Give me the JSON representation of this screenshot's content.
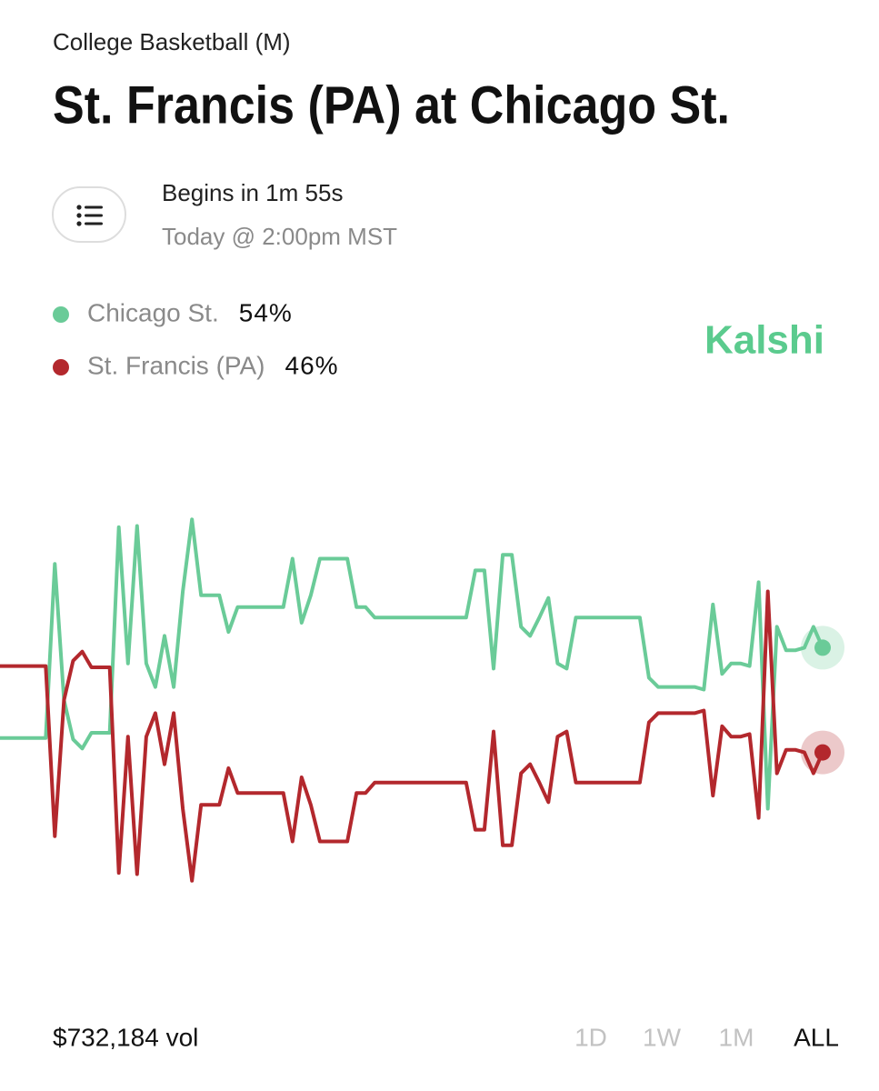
{
  "header": {
    "category": "College Basketball (M)",
    "title": "St. Francis (PA) at Chicago St."
  },
  "schedule": {
    "countdown": "Begins in 1m 55s",
    "time": "Today @ 2:00pm MST"
  },
  "brand": "Kalshi",
  "chart_data": {
    "type": "line",
    "ylim": [
      35,
      65
    ],
    "series": [
      {
        "name": "Chicago St.",
        "current": "54%",
        "color": "#6acb98",
        "values": [
          47.1,
          47.1,
          47.1,
          47.1,
          47.1,
          47.1,
          60.4,
          50,
          47,
          46.3,
          47.5,
          47.5,
          47.5,
          63.2,
          52.8,
          63.3,
          52.8,
          51,
          54.9,
          51,
          58.3,
          63.8,
          58,
          58,
          58,
          55.2,
          57.1,
          57.1,
          57.1,
          57.1,
          57.1,
          57.1,
          60.8,
          55.9,
          58,
          60.8,
          60.8,
          60.8,
          60.8,
          57.1,
          57.1,
          56.3,
          56.3,
          56.3,
          56.3,
          56.3,
          56.3,
          56.3,
          56.3,
          56.3,
          56.3,
          56.3,
          59.9,
          59.9,
          52.4,
          61.1,
          61.1,
          55.6,
          54.9,
          56.3,
          57.8,
          52.8,
          52.4,
          56.3,
          56.3,
          56.3,
          56.3,
          56.3,
          56.3,
          56.3,
          56.3,
          51.7,
          51,
          51,
          51,
          51,
          51,
          50.8,
          57.3,
          52,
          52.8,
          52.8,
          52.6,
          59,
          41.7,
          55.6,
          53.8,
          53.8,
          54,
          55.6,
          54
        ]
      },
      {
        "name": "St. Francis (PA)",
        "current": "46%",
        "color": "#b3282d",
        "values": [
          52.6,
          52.6,
          52.6,
          52.6,
          52.6,
          52.6,
          39.6,
          50,
          53,
          53.7,
          52.5,
          52.5,
          52.5,
          36.8,
          47.2,
          36.7,
          47.2,
          49,
          45.1,
          49,
          41.7,
          36.2,
          42,
          42,
          42,
          44.8,
          42.9,
          42.9,
          42.9,
          42.9,
          42.9,
          42.9,
          39.2,
          44.1,
          42,
          39.2,
          39.2,
          39.2,
          39.2,
          42.9,
          42.9,
          43.7,
          43.7,
          43.7,
          43.7,
          43.7,
          43.7,
          43.7,
          43.7,
          43.7,
          43.7,
          43.7,
          40.1,
          40.1,
          47.6,
          38.9,
          38.9,
          44.4,
          45.1,
          43.7,
          42.2,
          47.2,
          47.6,
          43.7,
          43.7,
          43.7,
          43.7,
          43.7,
          43.7,
          43.7,
          43.7,
          48.3,
          49,
          49,
          49,
          49,
          49,
          49.2,
          42.7,
          48,
          47.2,
          47.2,
          47.4,
          41,
          58.3,
          44.4,
          46.2,
          46.2,
          46,
          44.4,
          46
        ]
      }
    ]
  },
  "footer": {
    "volume": "$732,184 vol",
    "ranges": [
      "1D",
      "1W",
      "1M",
      "ALL"
    ],
    "active_range": 3
  }
}
